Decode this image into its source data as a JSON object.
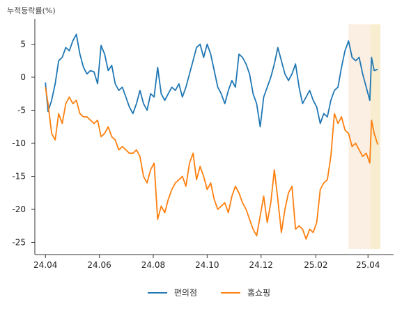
{
  "chart_data": {
    "type": "line",
    "ylabel": "누적등락률(%)",
    "ylim": [
      -26,
      8
    ],
    "yticks": [
      5,
      0,
      -5,
      -10,
      -15,
      -20,
      -25
    ],
    "xticks": [
      {
        "label": "24.04",
        "date": "2024-04-01"
      },
      {
        "label": "24.06",
        "date": "2024-06-01"
      },
      {
        "label": "24.08",
        "date": "2024-08-01"
      },
      {
        "label": "24.10",
        "date": "2024-10-01"
      },
      {
        "label": "24.12",
        "date": "2024-12-01"
      },
      {
        "label": "25.02",
        "date": "2025-02-01"
      },
      {
        "label": "25.04",
        "date": "2025-04-01"
      }
    ],
    "x_range": [
      "2024-03-20",
      "2025-04-30"
    ],
    "highlights": [
      {
        "start": "2025-03-10",
        "end": "2025-04-15",
        "color": "#fbeee2"
      },
      {
        "start": "2025-04-04",
        "end": "2025-04-15",
        "color": "#f8eecf"
      }
    ],
    "series": [
      {
        "name": "편의점",
        "color": "#1f77b4",
        "points": [
          [
            "2024-04-01",
            -0.8
          ],
          [
            "2024-04-04",
            -5.2
          ],
          [
            "2024-04-08",
            -3.5
          ],
          [
            "2024-04-12",
            -1.0
          ],
          [
            "2024-04-16",
            2.5
          ],
          [
            "2024-04-20",
            3.0
          ],
          [
            "2024-04-24",
            4.5
          ],
          [
            "2024-04-28",
            4.0
          ],
          [
            "2024-05-02",
            5.5
          ],
          [
            "2024-05-06",
            6.5
          ],
          [
            "2024-05-10",
            3.5
          ],
          [
            "2024-05-14",
            1.5
          ],
          [
            "2024-05-18",
            0.5
          ],
          [
            "2024-05-22",
            1.0
          ],
          [
            "2024-05-26",
            0.8
          ],
          [
            "2024-05-30",
            -1.0
          ],
          [
            "2024-06-03",
            4.8
          ],
          [
            "2024-06-07",
            3.5
          ],
          [
            "2024-06-11",
            1.0
          ],
          [
            "2024-06-15",
            1.8
          ],
          [
            "2024-06-19",
            -1.0
          ],
          [
            "2024-06-23",
            -2.0
          ],
          [
            "2024-06-27",
            -1.5
          ],
          [
            "2024-07-01",
            -3.0
          ],
          [
            "2024-07-05",
            -4.5
          ],
          [
            "2024-07-09",
            -5.5
          ],
          [
            "2024-07-13",
            -4.0
          ],
          [
            "2024-07-17",
            -2.0
          ],
          [
            "2024-07-21",
            -4.0
          ],
          [
            "2024-07-25",
            -5.0
          ],
          [
            "2024-07-29",
            -2.5
          ],
          [
            "2024-08-02",
            -3.0
          ],
          [
            "2024-08-06",
            1.5
          ],
          [
            "2024-08-10",
            -2.5
          ],
          [
            "2024-08-14",
            -3.5
          ],
          [
            "2024-08-18",
            -2.5
          ],
          [
            "2024-08-22",
            -1.5
          ],
          [
            "2024-08-26",
            -2.0
          ],
          [
            "2024-08-30",
            -1.0
          ],
          [
            "2024-09-03",
            -3.0
          ],
          [
            "2024-09-07",
            -1.5
          ],
          [
            "2024-09-11",
            0.5
          ],
          [
            "2024-09-15",
            2.5
          ],
          [
            "2024-09-19",
            4.5
          ],
          [
            "2024-09-23",
            5.0
          ],
          [
            "2024-09-27",
            3.0
          ],
          [
            "2024-10-01",
            5.0
          ],
          [
            "2024-10-05",
            3.5
          ],
          [
            "2024-10-09",
            1.0
          ],
          [
            "2024-10-13",
            -1.5
          ],
          [
            "2024-10-17",
            -2.5
          ],
          [
            "2024-10-21",
            -4.0
          ],
          [
            "2024-10-25",
            -2.0
          ],
          [
            "2024-10-29",
            -0.5
          ],
          [
            "2024-11-02",
            -1.5
          ],
          [
            "2024-11-06",
            3.5
          ],
          [
            "2024-11-10",
            3.0
          ],
          [
            "2024-11-14",
            2.0
          ],
          [
            "2024-11-18",
            0.5
          ],
          [
            "2024-11-22",
            -2.5
          ],
          [
            "2024-11-26",
            -4.0
          ],
          [
            "2024-11-30",
            -7.5
          ],
          [
            "2024-12-04",
            -3.0
          ],
          [
            "2024-12-08",
            -1.5
          ],
          [
            "2024-12-12",
            0.0
          ],
          [
            "2024-12-16",
            2.0
          ],
          [
            "2024-12-20",
            4.5
          ],
          [
            "2024-12-24",
            2.5
          ],
          [
            "2024-12-28",
            0.5
          ],
          [
            "2025-01-01",
            -0.5
          ],
          [
            "2025-01-05",
            0.5
          ],
          [
            "2025-01-09",
            2.0
          ],
          [
            "2025-01-13",
            -1.5
          ],
          [
            "2025-01-17",
            -4.0
          ],
          [
            "2025-01-21",
            -3.0
          ],
          [
            "2025-01-25",
            -2.0
          ],
          [
            "2025-01-29",
            -3.5
          ],
          [
            "2025-02-02",
            -4.5
          ],
          [
            "2025-02-06",
            -7.0
          ],
          [
            "2025-02-10",
            -5.5
          ],
          [
            "2025-02-14",
            -6.0
          ],
          [
            "2025-02-18",
            -3.5
          ],
          [
            "2025-02-22",
            -2.0
          ],
          [
            "2025-02-26",
            -1.5
          ],
          [
            "2025-03-02",
            1.5
          ],
          [
            "2025-03-06",
            4.0
          ],
          [
            "2025-03-10",
            5.5
          ],
          [
            "2025-03-14",
            3.0
          ],
          [
            "2025-03-18",
            2.5
          ],
          [
            "2025-03-22",
            3.0
          ],
          [
            "2025-03-26",
            0.5
          ],
          [
            "2025-03-30",
            -1.5
          ],
          [
            "2025-04-03",
            -3.5
          ],
          [
            "2025-04-05",
            3.0
          ],
          [
            "2025-04-08",
            1.0
          ],
          [
            "2025-04-12",
            1.2
          ]
        ]
      },
      {
        "name": "홈쇼핑",
        "color": "#ff7f0e",
        "points": [
          [
            "2024-04-01",
            -1.5
          ],
          [
            "2024-04-04",
            -4.0
          ],
          [
            "2024-04-08",
            -8.5
          ],
          [
            "2024-04-12",
            -9.5
          ],
          [
            "2024-04-16",
            -5.5
          ],
          [
            "2024-04-20",
            -7.0
          ],
          [
            "2024-04-24",
            -4.0
          ],
          [
            "2024-04-28",
            -3.0
          ],
          [
            "2024-05-02",
            -4.0
          ],
          [
            "2024-05-06",
            -3.5
          ],
          [
            "2024-05-10",
            -5.5
          ],
          [
            "2024-05-14",
            -6.0
          ],
          [
            "2024-05-18",
            -6.0
          ],
          [
            "2024-05-22",
            -6.5
          ],
          [
            "2024-05-26",
            -7.0
          ],
          [
            "2024-05-30",
            -6.5
          ],
          [
            "2024-06-03",
            -9.0
          ],
          [
            "2024-06-07",
            -8.5
          ],
          [
            "2024-06-11",
            -7.5
          ],
          [
            "2024-06-15",
            -9.0
          ],
          [
            "2024-06-19",
            -9.5
          ],
          [
            "2024-06-23",
            -11.0
          ],
          [
            "2024-06-27",
            -10.5
          ],
          [
            "2024-07-01",
            -11.0
          ],
          [
            "2024-07-05",
            -11.5
          ],
          [
            "2024-07-09",
            -11.5
          ],
          [
            "2024-07-13",
            -11.0
          ],
          [
            "2024-07-17",
            -12.0
          ],
          [
            "2024-07-21",
            -15.0
          ],
          [
            "2024-07-25",
            -16.0
          ],
          [
            "2024-07-29",
            -14.0
          ],
          [
            "2024-08-02",
            -13.0
          ],
          [
            "2024-08-06",
            -21.5
          ],
          [
            "2024-08-10",
            -19.5
          ],
          [
            "2024-08-14",
            -20.5
          ],
          [
            "2024-08-18",
            -18.5
          ],
          [
            "2024-08-22",
            -17.0
          ],
          [
            "2024-08-26",
            -16.0
          ],
          [
            "2024-08-30",
            -15.5
          ],
          [
            "2024-09-03",
            -15.0
          ],
          [
            "2024-09-07",
            -16.5
          ],
          [
            "2024-09-11",
            -13.0
          ],
          [
            "2024-09-15",
            -11.5
          ],
          [
            "2024-09-19",
            -15.5
          ],
          [
            "2024-09-23",
            -13.5
          ],
          [
            "2024-09-27",
            -15.0
          ],
          [
            "2024-10-01",
            -17.0
          ],
          [
            "2024-10-05",
            -16.0
          ],
          [
            "2024-10-09",
            -18.5
          ],
          [
            "2024-10-13",
            -20.0
          ],
          [
            "2024-10-17",
            -19.5
          ],
          [
            "2024-10-21",
            -19.0
          ],
          [
            "2024-10-25",
            -20.5
          ],
          [
            "2024-10-29",
            -18.0
          ],
          [
            "2024-11-02",
            -16.5
          ],
          [
            "2024-11-06",
            -17.5
          ],
          [
            "2024-11-10",
            -19.0
          ],
          [
            "2024-11-14",
            -20.0
          ],
          [
            "2024-11-18",
            -21.5
          ],
          [
            "2024-11-22",
            -23.0
          ],
          [
            "2024-11-26",
            -24.0
          ],
          [
            "2024-11-30",
            -21.0
          ],
          [
            "2024-12-04",
            -18.0
          ],
          [
            "2024-12-08",
            -22.0
          ],
          [
            "2024-12-12",
            -19.0
          ],
          [
            "2024-12-16",
            -14.0
          ],
          [
            "2024-12-20",
            -18.5
          ],
          [
            "2024-12-24",
            -23.5
          ],
          [
            "2024-12-28",
            -20.0
          ],
          [
            "2025-01-01",
            -17.5
          ],
          [
            "2025-01-05",
            -16.5
          ],
          [
            "2025-01-09",
            -23.0
          ],
          [
            "2025-01-13",
            -22.5
          ],
          [
            "2025-01-17",
            -23.0
          ],
          [
            "2025-01-21",
            -24.5
          ],
          [
            "2025-01-25",
            -23.0
          ],
          [
            "2025-01-29",
            -23.5
          ],
          [
            "2025-02-02",
            -22.0
          ],
          [
            "2025-02-06",
            -17.0
          ],
          [
            "2025-02-10",
            -16.0
          ],
          [
            "2025-02-14",
            -15.5
          ],
          [
            "2025-02-18",
            -12.0
          ],
          [
            "2025-02-22",
            -5.5
          ],
          [
            "2025-02-26",
            -7.0
          ],
          [
            "2025-03-02",
            -6.0
          ],
          [
            "2025-03-06",
            -8.0
          ],
          [
            "2025-03-10",
            -8.5
          ],
          [
            "2025-03-14",
            -10.5
          ],
          [
            "2025-03-18",
            -10.0
          ],
          [
            "2025-03-22",
            -11.0
          ],
          [
            "2025-03-26",
            -12.0
          ],
          [
            "2025-03-30",
            -11.5
          ],
          [
            "2025-04-03",
            -13.0
          ],
          [
            "2025-04-05",
            -6.5
          ],
          [
            "2025-04-08",
            -8.5
          ],
          [
            "2025-04-12",
            -10.2
          ]
        ]
      }
    ]
  }
}
